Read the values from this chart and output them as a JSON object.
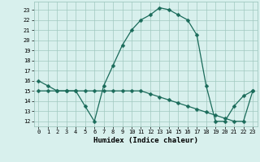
{
  "line1_x": [
    0,
    1,
    2,
    3,
    4,
    5,
    6,
    7,
    8,
    9,
    10,
    11,
    12,
    13,
    14,
    15,
    16,
    17,
    18,
    19,
    20,
    21,
    22,
    23
  ],
  "line1_y": [
    16,
    15.5,
    15,
    15,
    15,
    13.5,
    12,
    15.5,
    17.5,
    19.5,
    21,
    22,
    22.5,
    23.2,
    23.0,
    22.5,
    22,
    20.5,
    15.5,
    12,
    12,
    13.5,
    14.5,
    15
  ],
  "line2_x": [
    0,
    1,
    2,
    3,
    4,
    5,
    6,
    7,
    8,
    9,
    10,
    11,
    12,
    13,
    14,
    15,
    16,
    17,
    18,
    19,
    20,
    21,
    22,
    23
  ],
  "line2_y": [
    15,
    15,
    15,
    15,
    15,
    15,
    15,
    15,
    15,
    15,
    15,
    15,
    14.7,
    14.4,
    14.1,
    13.8,
    13.5,
    13.2,
    12.9,
    12.6,
    12.3,
    12.0,
    12.0,
    15.0
  ],
  "line_color": "#1a6b5a",
  "bg_color": "#d8f0ed",
  "grid_color": "#a0c8c0",
  "xlabel": "Humidex (Indice chaleur)",
  "ylim": [
    11.5,
    23.8
  ],
  "xlim": [
    -0.5,
    23.5
  ],
  "yticks": [
    12,
    13,
    14,
    15,
    16,
    17,
    18,
    19,
    20,
    21,
    22,
    23
  ],
  "xticks": [
    0,
    1,
    2,
    3,
    4,
    5,
    6,
    7,
    8,
    9,
    10,
    11,
    12,
    13,
    14,
    15,
    16,
    17,
    18,
    19,
    20,
    21,
    22,
    23
  ],
  "xtick_labels": [
    "0",
    "1",
    "2",
    "3",
    "4",
    "5",
    "6",
    "7",
    "8",
    "9",
    "10",
    "11",
    "12",
    "13",
    "14",
    "15",
    "16",
    "17",
    "18",
    "19",
    "20",
    "21",
    "22",
    "23"
  ],
  "marker": "D",
  "markersize": 2.5
}
